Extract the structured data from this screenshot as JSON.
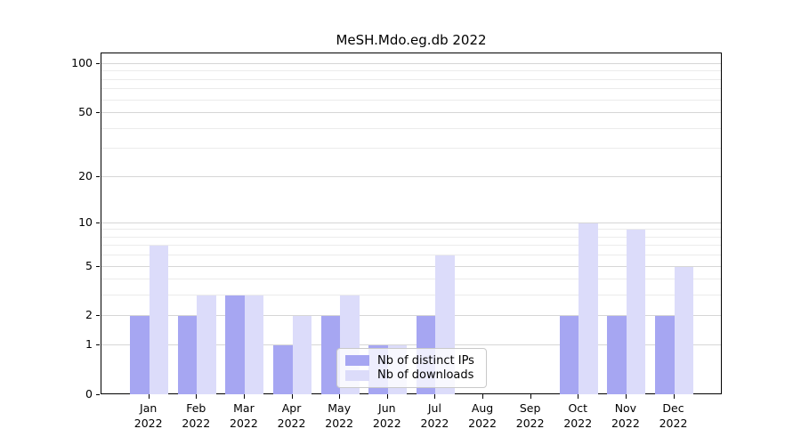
{
  "title": "MeSH.Mdo.eg.db 2022",
  "chart_data": {
    "type": "bar",
    "title": "MeSH.Mdo.eg.db 2022",
    "x_months": [
      "Jan",
      "Feb",
      "Mar",
      "Apr",
      "May",
      "Jun",
      "Jul",
      "Aug",
      "Sep",
      "Oct",
      "Nov",
      "Dec"
    ],
    "x_year": "2022",
    "series": [
      {
        "name": "Nb of distinct IPs",
        "color": "#a6a6f2",
        "values": [
          2,
          2,
          3,
          1,
          2,
          1,
          2,
          0,
          0,
          2,
          2,
          2
        ]
      },
      {
        "name": "Nb of downloads",
        "color": "#dcdcfa",
        "values": [
          7,
          3,
          3,
          2,
          3,
          1,
          6,
          0,
          0,
          10,
          9,
          5
        ]
      }
    ],
    "y_scale": "log1p",
    "ylim": [
      0,
      116
    ],
    "y_major_ticks": [
      0,
      1,
      2,
      5,
      10,
      20,
      50,
      100
    ],
    "y_minor_ticks": [
      3,
      4,
      6,
      7,
      8,
      9,
      30,
      40,
      60,
      70,
      80,
      90
    ],
    "grid": true,
    "legend_position": "inside-bottom-center",
    "colors": {
      "grid_major": "#d6d6d6",
      "grid_minor": "#ebebeb",
      "axis": "#000000",
      "text": "#000000",
      "legend_border": "#c9c9c9"
    }
  }
}
